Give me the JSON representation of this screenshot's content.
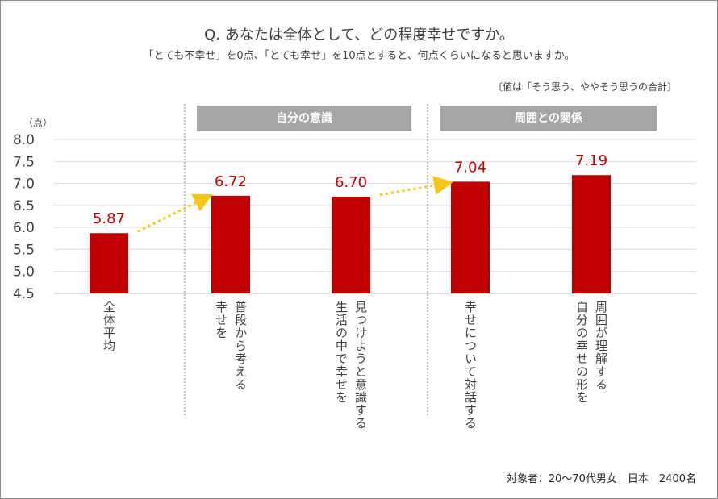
{
  "title": "Q. あなたは全体として、どの程度幸せですか。",
  "subtitle": "「とても不幸せ」を0点、「とても幸せ」を10点とすると、何点くらいになると思いますか。",
  "note": "〔値は「そう思う、ややそう思うの合計〕",
  "unit": "（点）",
  "groups": [
    {
      "label": "自分の意識"
    },
    {
      "label": "周囲との関係"
    }
  ],
  "source": "対象者：20〜70代男女　日本　2400名",
  "colors": {
    "bar": "#c00000",
    "value_label": "#c00000",
    "arrow": "#f5c518",
    "group_header": "#a6a6a6",
    "grid": "#d9d9d9"
  },
  "chart_data": {
    "type": "bar",
    "categories": [
      [
        "全体平均"
      ],
      [
        "普段から考える",
        "幸せを"
      ],
      [
        "見つけようと意識する",
        "生活の中で幸せを"
      ],
      [
        "幸せについて対話する"
      ],
      [
        "周囲が理解する",
        "自分の幸せの形を"
      ]
    ],
    "values": [
      5.87,
      6.72,
      6.7,
      7.04,
      7.19
    ],
    "value_labels": [
      "5.87",
      "6.72",
      "6.70",
      "7.04",
      "7.19"
    ],
    "ylim": [
      4.5,
      8.0
    ],
    "yticks": [
      "4.5",
      "5.0",
      "5.5",
      "6.0",
      "6.5",
      "7.0",
      "7.5",
      "8.0"
    ],
    "grid": true,
    "arrows": [
      [
        0,
        1
      ],
      [
        2,
        3
      ]
    ]
  }
}
